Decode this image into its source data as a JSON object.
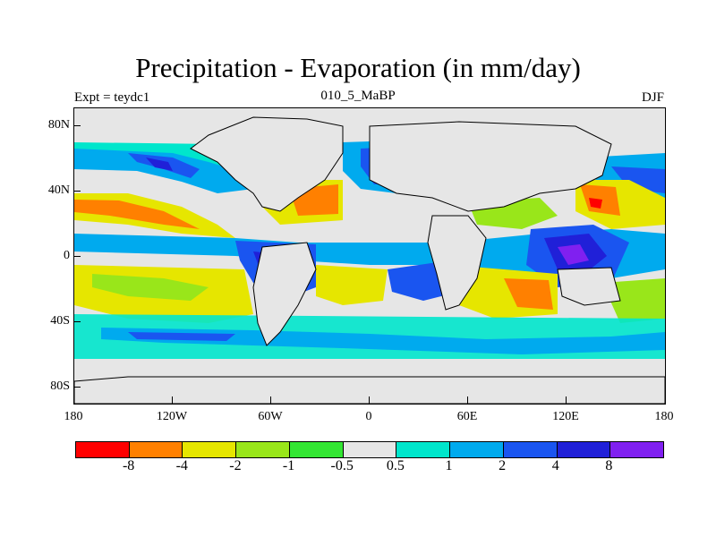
{
  "title": "Precipitation - Evaporation (in mm/day)",
  "subtitle_left": "Expt = teydc1",
  "subtitle_center": "010_5_MaBP",
  "subtitle_right": "DJF",
  "y_axis_labels": [
    "80N",
    "40N",
    "0",
    "40S",
    "80S"
  ],
  "x_axis_labels": [
    "180",
    "120W",
    "60W",
    "0",
    "60E",
    "120E",
    "180"
  ],
  "colorbar": {
    "colors": [
      "#ff0000",
      "#ff8000",
      "#e6e600",
      "#99e61a",
      "#33e633",
      "#e6e6e6",
      "#00e6cc",
      "#00aaee",
      "#1a55f0",
      "#2020d8",
      "#8020f0"
    ],
    "labels": [
      "-8",
      "-4",
      "-2",
      "-1",
      "-0.5",
      "0.5",
      "1",
      "2",
      "4",
      "8"
    ]
  }
}
